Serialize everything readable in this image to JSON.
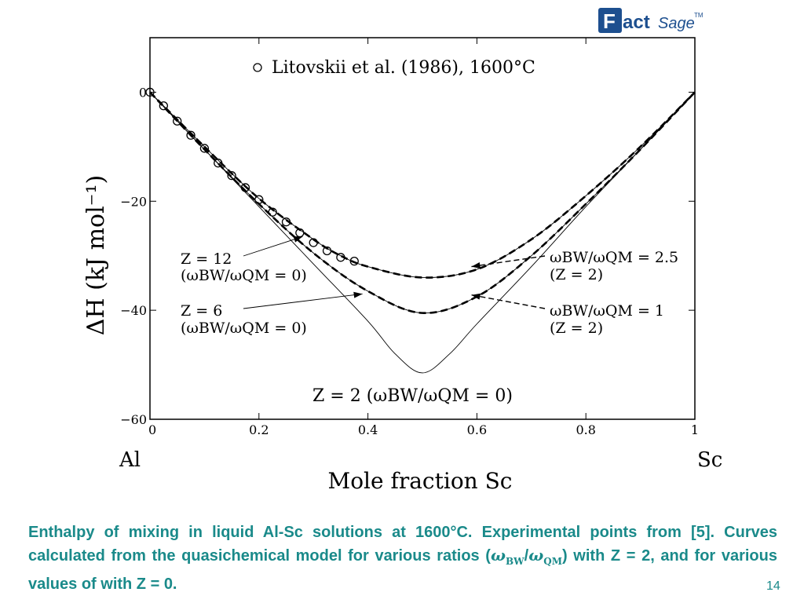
{
  "logo": {
    "text_f": "F",
    "text_act": "act",
    "text_sage": "Sage",
    "tm": "TM"
  },
  "caption": {
    "line1": "Enthalpy of mixing in liquid Al-Sc solutions at 1600°C. Experimental points from [5]. Curves calculated from the quasichemical model for various ratios (",
    "omega": "ω",
    "sub_bw": "BW",
    "slash": "/",
    "sub_qm": "QM",
    "line2": ") with Z = 2, and for various values of  with Z = 0."
  },
  "page_number": "14",
  "chart_data": {
    "type": "line",
    "xlabel": "Mole fraction Sc",
    "ylabel": "ΔH (kJ mol⁻¹)",
    "xlim": [
      0,
      1
    ],
    "ylim": [
      -60,
      10
    ],
    "x_ticks": [
      "0",
      "0.2",
      "0.4",
      "0.6",
      "0.8",
      "1"
    ],
    "y_ticks": [
      "0",
      "−20",
      "−40",
      "−60"
    ],
    "y_tick_values": [
      0,
      -20,
      -40,
      -60
    ],
    "end_labels": {
      "left": "Al",
      "right": "Sc"
    },
    "legend": {
      "label": "Litovskii et al. (1986), 1600°C",
      "placement": "top-center"
    },
    "series": [
      {
        "style": "solid-thin",
        "x": [
          0,
          0.1,
          0.2,
          0.3,
          0.4,
          0.45,
          0.5,
          0.55,
          0.6,
          0.7,
          0.8,
          0.9,
          1
        ],
        "y": [
          0,
          -10.5,
          -21,
          -31.5,
          -42,
          -48,
          -51.5,
          -48,
          -42.5,
          -32,
          -21,
          -10.5,
          0
        ]
      },
      {
        "style": "dashed",
        "x": [
          0,
          0.1,
          0.2,
          0.3,
          0.4,
          0.5,
          0.6,
          0.7,
          0.8,
          0.9,
          1
        ],
        "y": [
          0,
          -10.5,
          -20.5,
          -29.5,
          -36.5,
          -40.5,
          -37.5,
          -30,
          -20.5,
          -10.5,
          0
        ]
      },
      {
        "style": "solid",
        "x": [
          0,
          0.1,
          0.2,
          0.3,
          0.4,
          0.5,
          0.6,
          0.7,
          0.8,
          0.9,
          1
        ],
        "y": [
          0,
          -10.5,
          -20.5,
          -29.5,
          -36.5,
          -40.5,
          -37.5,
          -30,
          -20.5,
          -10.5,
          0
        ]
      },
      {
        "style": "dashed",
        "x": [
          0,
          0.1,
          0.2,
          0.3,
          0.35,
          0.4,
          0.5,
          0.6,
          0.7,
          0.8,
          0.9,
          1
        ],
        "y": [
          0,
          -10,
          -19.5,
          -27,
          -30,
          -32,
          -34,
          -32.5,
          -27,
          -19,
          -10,
          0
        ]
      },
      {
        "style": "solid",
        "x": [
          0,
          0.1,
          0.2,
          0.3,
          0.35,
          0.4,
          0.5,
          0.6,
          0.7,
          0.8,
          0.9,
          1
        ],
        "y": [
          0,
          -10,
          -19.5,
          -27,
          -30,
          -32,
          -34,
          -32.5,
          -27,
          -19,
          -10,
          0
        ]
      }
    ],
    "points": {
      "x": [
        0,
        0.025,
        0.05,
        0.075,
        0.1,
        0.125,
        0.15,
        0.175,
        0.2,
        0.225,
        0.25,
        0.275,
        0.3,
        0.325,
        0.35,
        0.375
      ],
      "y": [
        0,
        -2.5,
        -5.3,
        -7.9,
        -10.3,
        -13,
        -15.3,
        -17.5,
        -19.7,
        -22,
        -23.8,
        -25.8,
        -27.6,
        -29.1,
        -30.3,
        -31
      ]
    },
    "annotations": [
      {
        "id": "z12",
        "lines": [
          "Z = 12",
          "(ωBW/ωQM = 0)"
        ],
        "arrow_to": [
          0.28,
          -26.5
        ]
      },
      {
        "id": "z6",
        "lines": [
          "Z = 6",
          "(ωBW/ωQM = 0)"
        ],
        "arrow_to": [
          0.39,
          -37
        ]
      },
      {
        "id": "r25",
        "lines": [
          "ωBW/ωQM = 2.5",
          "(Z = 2)"
        ],
        "arrow_to": [
          0.59,
          -32
        ]
      },
      {
        "id": "r1",
        "lines": [
          "ωBW/ωQM = 1",
          "(Z = 2)"
        ],
        "arrow_to": [
          0.59,
          -37.2
        ]
      },
      {
        "id": "z2",
        "lines": [
          "Z = 2 (ωBW/ωQM = 0)"
        ]
      }
    ]
  }
}
